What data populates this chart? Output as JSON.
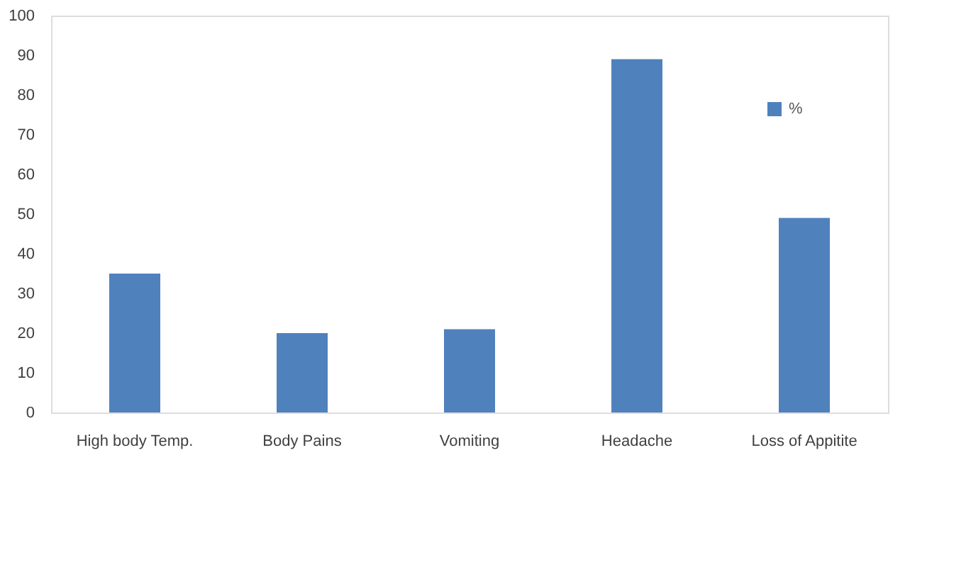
{
  "chart_data": {
    "type": "bar",
    "categories": [
      "High body Temp.",
      "Body Pains",
      "Vomiting",
      "Headache",
      "Loss of Appitite"
    ],
    "series": [
      {
        "name": "%",
        "color": "#4f81bd",
        "values": [
          35,
          20,
          21,
          89,
          49
        ]
      }
    ],
    "ylim": [
      0,
      100
    ],
    "yticks": [
      0,
      10,
      20,
      30,
      40,
      50,
      60,
      70,
      80,
      90,
      100
    ],
    "grid": false,
    "legend": "top right"
  }
}
